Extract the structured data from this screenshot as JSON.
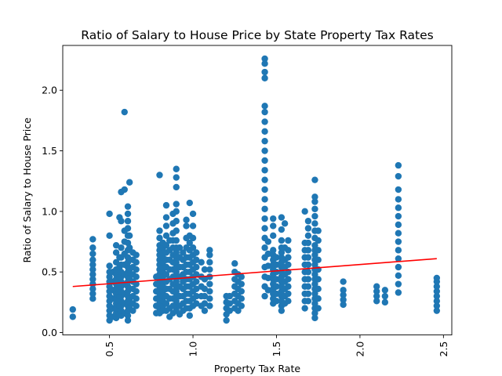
{
  "chart_data": {
    "type": "scatter",
    "title": "Ratio of Salary to House Price by State Property Tax Rates",
    "xlabel": "Property Tax Rate",
    "ylabel": "Ratio of Salary to House Price",
    "xlim": [
      0.22,
      2.55
    ],
    "ylim": [
      -0.02,
      2.37
    ],
    "grid": false,
    "x_ticks": [
      0.5,
      1.0,
      1.5,
      2.0,
      2.5
    ],
    "x_tick_labels": [
      "0.5",
      "1.0",
      "1.5",
      "2.0",
      "2.5"
    ],
    "x_tick_rotation": 90,
    "y_ticks": [
      0.0,
      0.5,
      1.0,
      1.5,
      2.0
    ],
    "y_tick_labels": [
      "0.0",
      "0.5",
      "1.0",
      "1.5",
      "2.0"
    ],
    "marker_color": "#1f77b4",
    "series": [
      {
        "kind": "points",
        "color": "#1f77b4",
        "columns": [
          {
            "x": 0.28,
            "y": [
              0.13,
              0.19
            ]
          },
          {
            "x": 0.4,
            "y": [
              0.28,
              0.32,
              0.36,
              0.4,
              0.44,
              0.48,
              0.52,
              0.56,
              0.6,
              0.65,
              0.7,
              0.77
            ]
          },
          {
            "x": 0.5,
            "y": [
              0.1,
              0.14,
              0.18,
              0.22,
              0.26,
              0.3,
              0.34,
              0.38,
              0.42,
              0.46,
              0.5,
              0.55,
              0.8,
              0.98
            ]
          },
          {
            "x": 0.52,
            "y": [
              0.13,
              0.2,
              0.28,
              0.35,
              0.42,
              0.5
            ]
          },
          {
            "x": 0.54,
            "y": [
              0.12,
              0.16,
              0.2,
              0.24,
              0.28,
              0.32,
              0.36,
              0.4,
              0.44,
              0.48,
              0.52,
              0.58,
              0.66,
              0.72
            ]
          },
          {
            "x": 0.56,
            "y": [
              0.15,
              0.22,
              0.3,
              0.38,
              0.46,
              0.54,
              0.62,
              0.95
            ]
          },
          {
            "x": 0.57,
            "y": [
              0.14,
              0.18,
              0.22,
              0.26,
              0.3,
              0.34,
              0.38,
              0.42,
              0.46,
              0.5,
              0.56,
              0.62,
              0.7,
              0.92,
              1.16
            ]
          },
          {
            "x": 0.59,
            "y": [
              0.16,
              0.24,
              0.32,
              0.4,
              0.48,
              0.56,
              0.65,
              0.75,
              0.84,
              1.18,
              1.82
            ]
          },
          {
            "x": 0.61,
            "y": [
              0.1,
              0.14,
              0.18,
              0.22,
              0.26,
              0.3,
              0.34,
              0.38,
              0.42,
              0.46,
              0.5,
              0.54,
              0.58,
              0.62,
              0.68,
              0.74,
              0.8,
              0.86,
              0.92,
              0.98,
              1.04
            ]
          },
          {
            "x": 0.62,
            "y": [
              0.2,
              0.28,
              0.36,
              0.44,
              0.52,
              0.6,
              0.7,
              0.8,
              1.24
            ]
          },
          {
            "x": 0.64,
            "y": [
              0.18,
              0.24,
              0.3,
              0.36,
              0.42,
              0.48,
              0.54,
              0.6,
              0.66
            ]
          },
          {
            "x": 0.66,
            "y": [
              0.22,
              0.28,
              0.34,
              0.4,
              0.46,
              0.52,
              0.58,
              0.64
            ]
          },
          {
            "x": 0.78,
            "y": [
              0.16,
              0.22,
              0.28,
              0.34,
              0.4,
              0.46
            ]
          },
          {
            "x": 0.8,
            "y": [
              0.16,
              0.2,
              0.24,
              0.28,
              0.32,
              0.36,
              0.4,
              0.44,
              0.48,
              0.52,
              0.56,
              0.6,
              0.64,
              0.68,
              0.72,
              0.78,
              0.84,
              1.3
            ]
          },
          {
            "x": 0.82,
            "y": [
              0.18,
              0.22,
              0.26,
              0.3,
              0.34,
              0.38,
              0.42,
              0.46,
              0.5,
              0.54,
              0.58,
              0.62,
              0.66,
              0.7,
              0.74
            ]
          },
          {
            "x": 0.84,
            "y": [
              0.18,
              0.24,
              0.3,
              0.36,
              0.42,
              0.48,
              0.54,
              0.6,
              0.66,
              0.72,
              0.8,
              0.88,
              0.95,
              1.05
            ]
          },
          {
            "x": 0.86,
            "y": [
              0.13,
              0.2,
              0.28,
              0.36,
              0.44,
              0.52,
              0.6,
              0.68,
              0.76
            ]
          },
          {
            "x": 0.88,
            "y": [
              0.16,
              0.22,
              0.28,
              0.34,
              0.4,
              0.46,
              0.52,
              0.58,
              0.64,
              0.7,
              0.76,
              0.82,
              0.9,
              0.98
            ]
          },
          {
            "x": 0.9,
            "y": [
              0.18,
              0.22,
              0.26,
              0.3,
              0.34,
              0.38,
              0.42,
              0.46,
              0.5,
              0.54,
              0.58,
              0.62,
              0.66,
              0.7,
              0.76,
              0.84,
              0.92,
              1.0,
              1.06,
              1.2,
              1.28,
              1.35
            ]
          },
          {
            "x": 0.92,
            "y": [
              0.15,
              0.22,
              0.3,
              0.38,
              0.46,
              0.54,
              0.62,
              0.7
            ]
          },
          {
            "x": 0.94,
            "y": [
              0.18,
              0.24,
              0.3,
              0.36,
              0.42,
              0.48,
              0.54,
              0.6,
              0.66
            ]
          },
          {
            "x": 0.96,
            "y": [
              0.2,
              0.26,
              0.32,
              0.38,
              0.44,
              0.5,
              0.56,
              0.62,
              0.7,
              0.78,
              0.88,
              0.93
            ]
          },
          {
            "x": 0.98,
            "y": [
              0.14,
              0.2,
              0.26,
              0.32,
              0.38,
              0.44,
              0.5,
              0.56,
              0.62,
              0.68,
              0.74,
              0.8,
              1.07
            ]
          },
          {
            "x": 1.0,
            "y": [
              0.22,
              0.28,
              0.34,
              0.4,
              0.46,
              0.52,
              0.58,
              0.64,
              0.7,
              0.78,
              0.88,
              0.98
            ]
          },
          {
            "x": 1.02,
            "y": [
              0.24,
              0.3,
              0.36,
              0.42,
              0.48,
              0.54,
              0.6,
              0.66
            ]
          },
          {
            "x": 1.05,
            "y": [
              0.22,
              0.3,
              0.38,
              0.46,
              0.58
            ]
          },
          {
            "x": 1.07,
            "y": [
              0.18,
              0.24,
              0.3,
              0.36,
              0.44,
              0.52
            ]
          },
          {
            "x": 1.1,
            "y": [
              0.22,
              0.28,
              0.34,
              0.4,
              0.46,
              0.52,
              0.58,
              0.64,
              0.68
            ]
          },
          {
            "x": 1.2,
            "y": [
              0.1,
              0.15,
              0.2,
              0.25,
              0.3
            ]
          },
          {
            "x": 1.22,
            "y": [
              0.18,
              0.24,
              0.3
            ]
          },
          {
            "x": 1.25,
            "y": [
              0.2,
              0.26,
              0.32,
              0.38,
              0.44,
              0.5,
              0.57
            ]
          },
          {
            "x": 1.27,
            "y": [
              0.18,
              0.24,
              0.3,
              0.36,
              0.42,
              0.48
            ]
          },
          {
            "x": 1.29,
            "y": [
              0.22,
              0.28,
              0.34,
              0.4,
              0.46
            ]
          },
          {
            "x": 1.43,
            "y": [
              0.3,
              0.38,
              0.46,
              0.54,
              0.62,
              0.7,
              0.78,
              0.86,
              0.94,
              1.02,
              1.1,
              1.18,
              1.26,
              1.34,
              1.42,
              1.5,
              1.58,
              1.66,
              1.74,
              1.82,
              1.87,
              2.1,
              2.15,
              2.22,
              2.26
            ]
          },
          {
            "x": 1.45,
            "y": [
              0.35,
              0.45,
              0.55,
              0.65,
              0.75
            ]
          },
          {
            "x": 1.48,
            "y": [
              0.24,
              0.28,
              0.32,
              0.36,
              0.4,
              0.44,
              0.48,
              0.52,
              0.56,
              0.6,
              0.64,
              0.68,
              0.8,
              0.88,
              0.94
            ]
          },
          {
            "x": 1.5,
            "y": [
              0.26,
              0.32,
              0.38,
              0.44,
              0.5,
              0.56,
              0.62
            ]
          },
          {
            "x": 1.53,
            "y": [
              0.18,
              0.22,
              0.26,
              0.3,
              0.34,
              0.38,
              0.42,
              0.46,
              0.5,
              0.54,
              0.58,
              0.62,
              0.66,
              0.7,
              0.76,
              0.85,
              0.95
            ]
          },
          {
            "x": 1.55,
            "y": [
              0.24,
              0.3,
              0.36,
              0.42,
              0.48,
              0.54,
              0.6,
              0.7,
              0.9
            ]
          },
          {
            "x": 1.57,
            "y": [
              0.26,
              0.32,
              0.38,
              0.44,
              0.5,
              0.56,
              0.62,
              0.68,
              0.76
            ]
          },
          {
            "x": 1.67,
            "y": [
              0.2,
              0.26,
              0.32,
              0.38,
              0.44,
              0.5,
              0.56,
              0.62,
              0.68,
              0.74,
              1.0
            ]
          },
          {
            "x": 1.69,
            "y": [
              0.26,
              0.32,
              0.38,
              0.44,
              0.5,
              0.56,
              0.62,
              0.68,
              0.74,
              0.8,
              0.86,
              0.92
            ]
          },
          {
            "x": 1.73,
            "y": [
              0.12,
              0.16,
              0.2,
              0.24,
              0.28,
              0.32,
              0.36,
              0.4,
              0.44,
              0.48,
              0.52,
              0.56,
              0.6,
              0.64,
              0.68,
              0.72,
              0.78,
              0.84,
              0.9,
              0.96,
              1.02,
              1.08,
              1.12,
              1.26
            ]
          },
          {
            "x": 1.75,
            "y": [
              0.2,
              0.28,
              0.36,
              0.44,
              0.52,
              0.6,
              0.68,
              0.76,
              0.84
            ]
          },
          {
            "x": 1.9,
            "y": [
              0.23,
              0.27,
              0.31,
              0.35,
              0.42
            ]
          },
          {
            "x": 2.1,
            "y": [
              0.26,
              0.3,
              0.34,
              0.38
            ]
          },
          {
            "x": 2.15,
            "y": [
              0.25,
              0.3,
              0.35
            ]
          },
          {
            "x": 2.23,
            "y": [
              0.33,
              0.4,
              0.47,
              0.54,
              0.61,
              0.68,
              0.75,
              0.82,
              0.89,
              0.96,
              1.03,
              1.1,
              1.18,
              1.29,
              1.38
            ]
          },
          {
            "x": 2.46,
            "y": [
              0.18,
              0.22,
              0.26,
              0.3,
              0.34,
              0.38,
              0.42,
              0.45
            ]
          }
        ]
      },
      {
        "kind": "trendline",
        "color": "#ff0000",
        "x": [
          0.28,
          2.46
        ],
        "y": [
          0.38,
          0.61
        ]
      }
    ]
  }
}
